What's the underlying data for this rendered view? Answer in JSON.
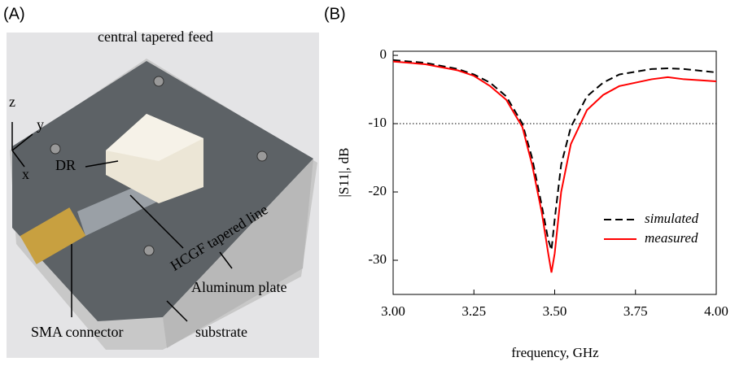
{
  "panels": {
    "a": "(A)",
    "b": "(B)"
  },
  "photo": {
    "labels": {
      "feed": "central tapered feed",
      "z": "z",
      "y": "y",
      "x": "x",
      "dr": "DR",
      "line": "HCGF tapered line",
      "plate": "Aluminum plate",
      "sma": "SMA connector",
      "substrate": "substrate"
    }
  },
  "chart_data": {
    "type": "line",
    "x_label": "frequency, GHz",
    "y_label": "|S11|, dB",
    "x": [
      3.0,
      3.1,
      3.2,
      3.25,
      3.3,
      3.35,
      3.4,
      3.43,
      3.46,
      3.48,
      3.49,
      3.5,
      3.52,
      3.55,
      3.6,
      3.65,
      3.7,
      3.8,
      3.85,
      3.9,
      4.0
    ],
    "series": [
      {
        "name": "simulated",
        "color": "#000000",
        "dash": true,
        "values": [
          -0.7,
          -1.1,
          -2.0,
          -2.8,
          -4.0,
          -6.0,
          -10.0,
          -15,
          -22,
          -27,
          -28.5,
          -24,
          -16,
          -10.5,
          -6,
          -4,
          -2.8,
          -2.0,
          -1.9,
          -2.0,
          -2.5
        ]
      },
      {
        "name": "measured",
        "color": "#ff0000",
        "dash": false,
        "values": [
          -0.9,
          -1.3,
          -2.2,
          -3.0,
          -4.5,
          -6.5,
          -10.5,
          -16,
          -23,
          -29,
          -31.8,
          -29,
          -20,
          -13,
          -8,
          -5.8,
          -4.5,
          -3.5,
          -3.2,
          -3.5,
          -3.8
        ]
      }
    ],
    "reference_line": -10,
    "xlim": [
      3.0,
      4.0
    ],
    "ylim": [
      -35,
      0.6
    ],
    "xticks": [
      {
        "value": 3.0,
        "label": "3.00"
      },
      {
        "value": 3.25,
        "label": "3.25"
      },
      {
        "value": 3.5,
        "label": "3.50"
      },
      {
        "value": 3.75,
        "label": "3.75"
      },
      {
        "value": 4.0,
        "label": "4.00"
      }
    ],
    "yticks": [
      0,
      -10,
      -20,
      -30
    ],
    "legend": "lower-right"
  }
}
